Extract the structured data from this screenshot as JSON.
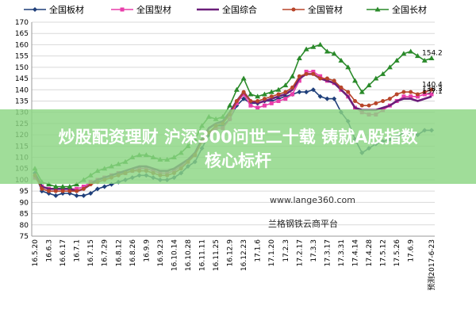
{
  "chart_data": {
    "type": "line",
    "x": [
      "16.5.20",
      "16.5.27",
      "16.6.3",
      "16.6.10",
      "16.6.17",
      "16.6.24",
      "16.7.1",
      "16.7.8",
      "16.7.15",
      "16.7.22",
      "16.7.29",
      "16.8.5",
      "16.8.12",
      "16.8.19",
      "16.8.26",
      "16.9.2",
      "16.9.9",
      "16.9.16",
      "16.9.23",
      "16.9.30",
      "16.10.7",
      "16.10.14",
      "16.10.21",
      "16.10.28",
      "16.11.4",
      "16.11.11",
      "16.11.18",
      "16.11.25",
      "16.12.2",
      "16.12.9",
      "16.12.16",
      "16.12.23",
      "16.12.30",
      "17.1.6",
      "17.1.13",
      "17.1.20",
      "17.1.27",
      "17.2.3",
      "17.2.10",
      "17.2.17",
      "17.2.24",
      "17.3.3",
      "17.3.10",
      "17.3.17",
      "17.3.24",
      "17.3.31",
      "17.4.7",
      "17.4.14",
      "17.4.21",
      "17.4.28",
      "17.5.5",
      "17.5.12",
      "17.5.19",
      "17.5.26",
      "17.6.2",
      "17.6.9",
      "17.6.16",
      "17.6.23"
    ],
    "x_tick_labels": [
      "16.5.20",
      "16.6.3",
      "16.6.17",
      "16.7.1",
      "16.7.15",
      "16.7.29",
      "16.8.12",
      "16.8.26",
      "16.9.9",
      "16.9.23",
      "16.10.14",
      "16.10.28",
      "16.11.11",
      "16.11.25",
      "16.12.9",
      "16.12.23",
      "17.1.6",
      "17.1.20",
      "17.2.3",
      "17.2.17",
      "17.3.3",
      "17.3.17",
      "17.3.31",
      "17.4.14",
      "17.4.28",
      "17.5.12",
      "17.5.26",
      "17.6.9",
      "预测2017-6-23"
    ],
    "ylim": [
      75,
      170
    ],
    "y_ticks": [
      75,
      80,
      85,
      90,
      95,
      100,
      105,
      110,
      115,
      120,
      125,
      130,
      135,
      140,
      145,
      150,
      155,
      160,
      165,
      170
    ],
    "series": [
      {
        "name": "全国板材",
        "color": "#1f3f7a",
        "marker": "diamond",
        "end_label": "",
        "values": [
          103,
          95,
          94,
          93,
          94,
          94,
          93,
          93,
          94,
          96,
          97,
          98,
          99,
          100,
          101,
          102,
          102,
          101,
          100,
          100,
          101,
          103,
          106,
          108,
          114,
          120,
          124,
          124,
          127,
          133,
          136,
          134,
          134,
          135,
          135,
          136,
          137,
          138,
          139,
          139,
          140,
          137,
          136,
          136,
          130,
          126,
          118,
          112,
          114,
          116,
          117,
          118,
          119,
          121,
          121,
          120,
          122,
          122
        ]
      },
      {
        "name": "全国型材",
        "color": "#e83eaa",
        "marker": "square",
        "end_label": "138.3",
        "values": [
          101,
          97,
          96,
          96,
          96,
          96,
          96,
          97,
          99,
          100,
          101,
          102,
          103,
          103,
          104,
          105,
          105,
          104,
          103,
          103,
          104,
          106,
          108,
          111,
          117,
          121,
          123,
          123,
          127,
          134,
          138,
          133,
          132,
          133,
          134,
          135,
          136,
          138,
          144,
          148,
          148,
          146,
          144,
          143,
          140,
          137,
          132,
          130,
          129,
          129,
          131,
          133,
          135,
          137,
          137,
          137,
          138,
          138
        ]
      },
      {
        "name": "全国综合",
        "color": "#6b1e7a",
        "marker": "none",
        "end_label": "137.1",
        "values": [
          103,
          97,
          96,
          96,
          96,
          96,
          95,
          96,
          98,
          100,
          101,
          102,
          103,
          104,
          105,
          106,
          106,
          105,
          104,
          104,
          105,
          107,
          109,
          112,
          118,
          123,
          125,
          126,
          130,
          135,
          139,
          135,
          134,
          135,
          136,
          137,
          138,
          140,
          145,
          147,
          147,
          145,
          144,
          143,
          140,
          137,
          132,
          131,
          131,
          131,
          132,
          133,
          135,
          136,
          136,
          135,
          136,
          137
        ]
      },
      {
        "name": "全国管材",
        "color": "#b8452a",
        "marker": "circle",
        "end_label": "140.4",
        "values": [
          102,
          96,
          95,
          95,
          95,
          95,
          95,
          96,
          98,
          99,
          100,
          101,
          102,
          103,
          104,
          104,
          104,
          103,
          102,
          102,
          103,
          105,
          108,
          111,
          117,
          121,
          124,
          125,
          129,
          135,
          139,
          135,
          135,
          136,
          137,
          138,
          139,
          141,
          146,
          147,
          147,
          145,
          145,
          144,
          141,
          139,
          135,
          133,
          133,
          134,
          135,
          136,
          138,
          139,
          139,
          138,
          139,
          140
        ]
      },
      {
        "name": "全国长材",
        "color": "#2a8a2a",
        "marker": "triangle",
        "end_label": "154.2",
        "values": [
          105,
          99,
          98,
          97,
          97,
          97,
          98,
          100,
          102,
          104,
          105,
          106,
          107,
          108,
          110,
          111,
          111,
          110,
          109,
          109,
          110,
          112,
          115,
          118,
          124,
          128,
          127,
          128,
          133,
          140,
          145,
          138,
          137,
          138,
          139,
          140,
          142,
          146,
          154,
          158,
          159,
          160,
          157,
          156,
          153,
          150,
          144,
          139,
          142,
          145,
          147,
          150,
          153,
          156,
          157,
          155,
          153,
          154
        ]
      }
    ]
  },
  "watermark": "www.lange360.com",
  "platform_label": "兰格钢铁云商平台",
  "banner": {
    "line1": "炒股配资理财 沪深300问世二十载 铸就A股指数",
    "line2": "核心标杆"
  }
}
